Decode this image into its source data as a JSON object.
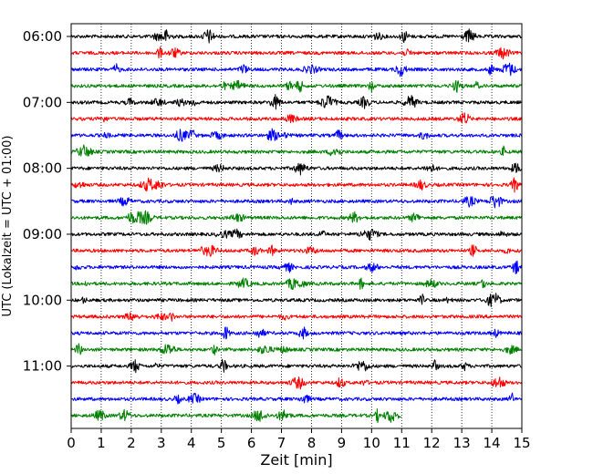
{
  "chart_data": {
    "type": "line",
    "xlabel": "Zeit  [min]",
    "ylabel": "UTC (Lokalzeit = UTC + 01:00)",
    "xlim": [
      0,
      15
    ],
    "x_ticks": [
      0,
      1,
      2,
      3,
      4,
      5,
      6,
      7,
      8,
      9,
      10,
      11,
      12,
      13,
      14,
      15
    ],
    "y_tick_labels": [
      "06:00",
      "07:00",
      "08:00",
      "09:00",
      "10:00",
      "11:00"
    ],
    "vertical_grid": "dotted",
    "trace_colors": [
      "#000000",
      "#ff0000",
      "#0000ff",
      "#008000"
    ],
    "traces": [
      {
        "start": "06:00",
        "end_minute": 15,
        "color": "#000000"
      },
      {
        "start": "06:15",
        "end_minute": 15,
        "color": "#ff0000"
      },
      {
        "start": "06:30",
        "end_minute": 15,
        "color": "#0000ff"
      },
      {
        "start": "06:45",
        "end_minute": 15,
        "color": "#008000"
      },
      {
        "start": "07:00",
        "end_minute": 15,
        "color": "#000000"
      },
      {
        "start": "07:15",
        "end_minute": 15,
        "color": "#ff0000"
      },
      {
        "start": "07:30",
        "end_minute": 15,
        "color": "#0000ff"
      },
      {
        "start": "07:45",
        "end_minute": 15,
        "color": "#008000"
      },
      {
        "start": "08:00",
        "end_minute": 15,
        "color": "#000000"
      },
      {
        "start": "08:15",
        "end_minute": 15,
        "color": "#ff0000"
      },
      {
        "start": "08:30",
        "end_minute": 15,
        "color": "#0000ff"
      },
      {
        "start": "08:45",
        "end_minute": 15,
        "color": "#008000"
      },
      {
        "start": "09:00",
        "end_minute": 15,
        "color": "#000000"
      },
      {
        "start": "09:15",
        "end_minute": 15,
        "color": "#ff0000"
      },
      {
        "start": "09:30",
        "end_minute": 15,
        "color": "#0000ff"
      },
      {
        "start": "09:45",
        "end_minute": 15,
        "color": "#008000"
      },
      {
        "start": "10:00",
        "end_minute": 15,
        "color": "#000000"
      },
      {
        "start": "10:15",
        "end_minute": 15,
        "color": "#ff0000"
      },
      {
        "start": "10:30",
        "end_minute": 15,
        "color": "#0000ff"
      },
      {
        "start": "10:45",
        "end_minute": 15,
        "color": "#008000"
      },
      {
        "start": "11:00",
        "end_minute": 15,
        "color": "#000000"
      },
      {
        "start": "11:15",
        "end_minute": 15,
        "color": "#ff0000"
      },
      {
        "start": "11:30",
        "end_minute": 15,
        "color": "#0000ff"
      },
      {
        "start": "11:45",
        "end_minute": 11,
        "color": "#008000"
      }
    ]
  }
}
